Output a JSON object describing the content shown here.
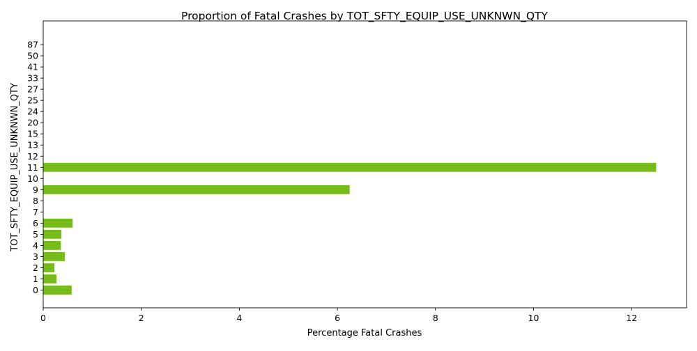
{
  "chart_data": {
    "type": "bar",
    "orientation": "horizontal",
    "title": "Proportion of Fatal Crashes by TOT_SFTY_EQUIP_USE_UNKNWN_QTY",
    "xlabel": "Percentage Fatal Crashes",
    "ylabel": "TOT_SFTY_EQUIP_USE_UNKNWN_QTY",
    "categories": [
      "0",
      "1",
      "2",
      "3",
      "4",
      "5",
      "6",
      "7",
      "8",
      "9",
      "10",
      "11",
      "12",
      "13",
      "15",
      "20",
      "24",
      "25",
      "27",
      "33",
      "41",
      "50",
      "87"
    ],
    "values": [
      0.58,
      0.27,
      0.23,
      0.44,
      0.36,
      0.37,
      0.6,
      0,
      0,
      6.25,
      0,
      12.5,
      0,
      0,
      0,
      0,
      0,
      0,
      0,
      0,
      0,
      0,
      0
    ],
    "xlim": [
      0,
      13.12
    ],
    "xticks": [
      0,
      2,
      4,
      6,
      8,
      10,
      12
    ],
    "bar_color": "#75bc1a",
    "grid": false,
    "legend": "none"
  }
}
